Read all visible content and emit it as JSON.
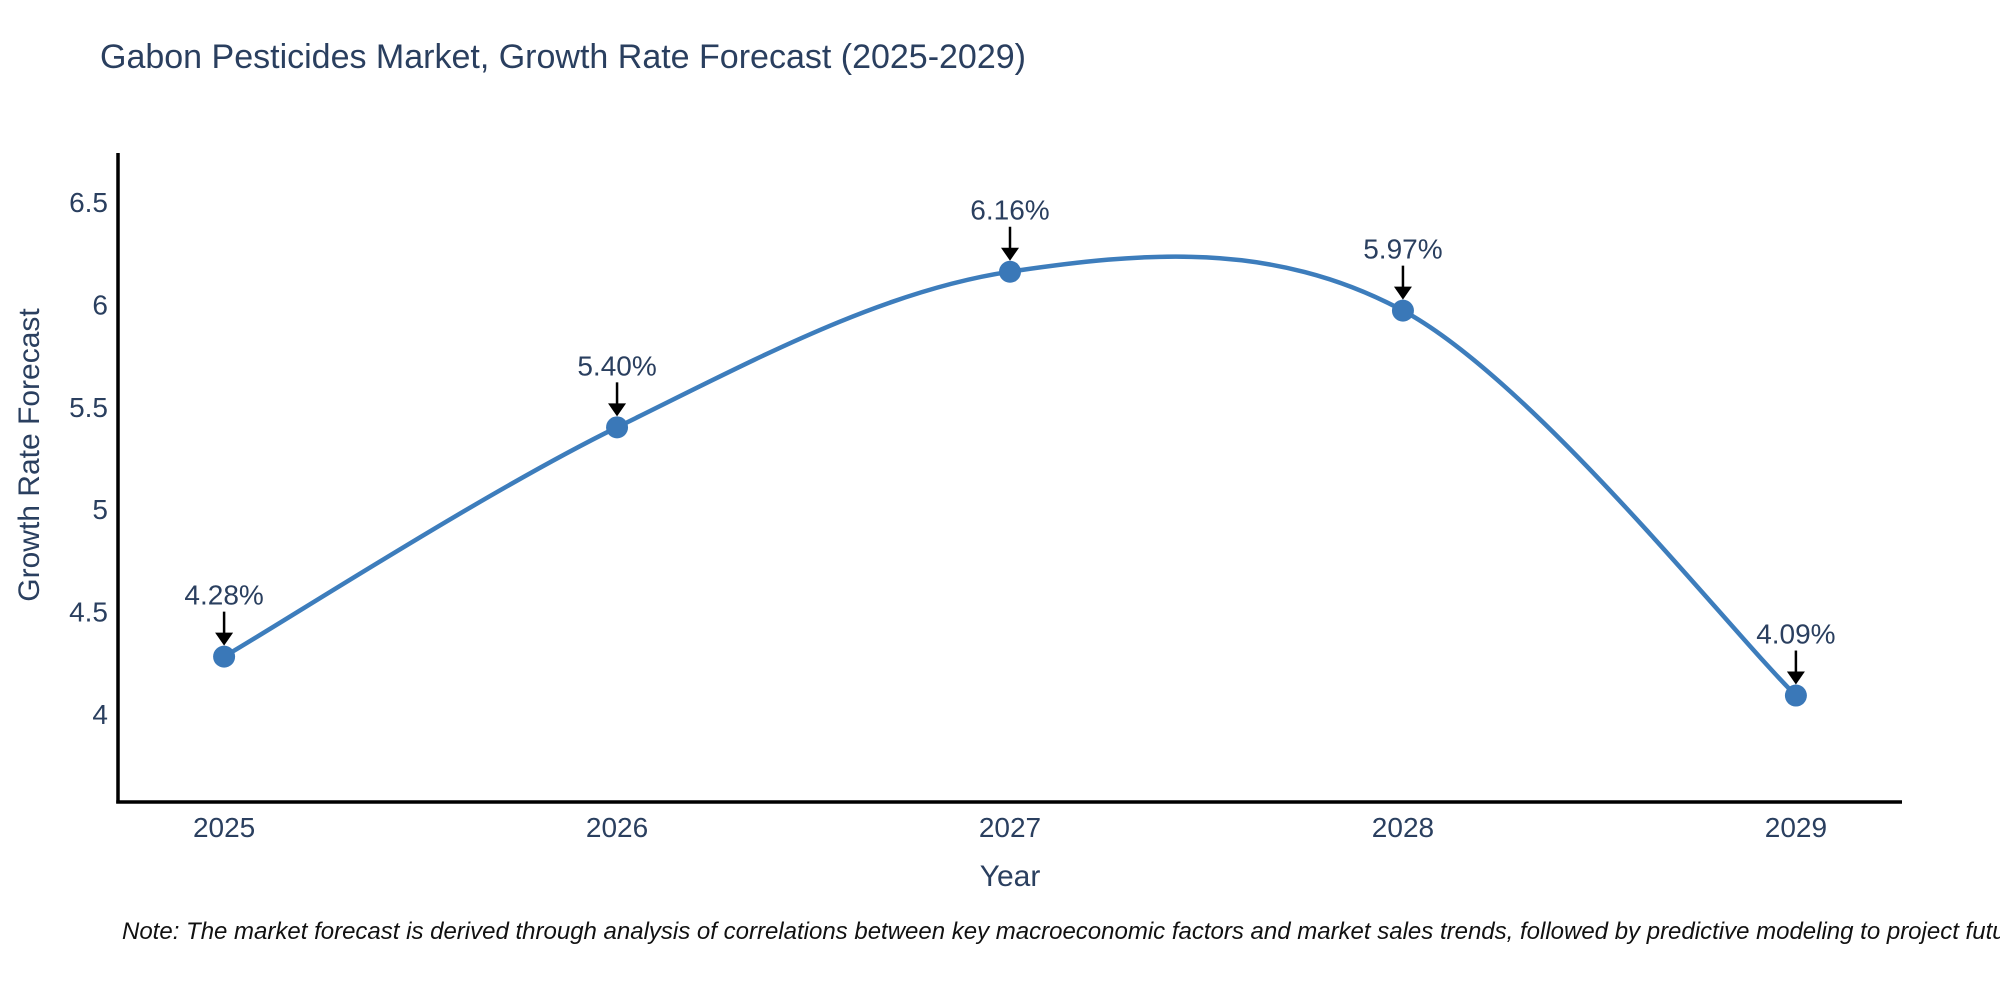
{
  "title": "Gabon Pesticides Market, Growth Rate Forecast (2025-2029)",
  "note": "Note: The market forecast is derived through analysis of correlations between key macroeconomic factors and market sales trends, followed by predictive modeling to project future sales",
  "colors": {
    "text": "#2a3f5f",
    "note_text": "#111111",
    "line": "#3d7dbc",
    "marker": "#3a78b8",
    "axis": "#000000",
    "arrow": "#000000"
  },
  "chart_data": {
    "type": "line",
    "title": "Gabon Pesticides Market, Growth Rate Forecast (2025-2029)",
    "xlabel": "Year",
    "ylabel": "Growth Rate Forecast",
    "x": [
      2025,
      2026,
      2027,
      2028,
      2029
    ],
    "y": [
      4.28,
      5.4,
      6.16,
      5.97,
      4.09
    ],
    "point_labels": [
      "4.28%",
      "5.40%",
      "6.16%",
      "5.97%",
      "4.09%"
    ],
    "xticks": [
      "2025",
      "2026",
      "2027",
      "2028",
      "2029"
    ],
    "yticks": [
      6.5,
      6,
      5.5,
      5,
      4.5,
      4
    ],
    "xlim": [
      2024.73,
      2029.27
    ],
    "ylim": [
      3.57,
      6.74
    ],
    "line_shape": "spline",
    "grid": false,
    "legend": false,
    "annotation_style": "label-with-down-arrow"
  }
}
